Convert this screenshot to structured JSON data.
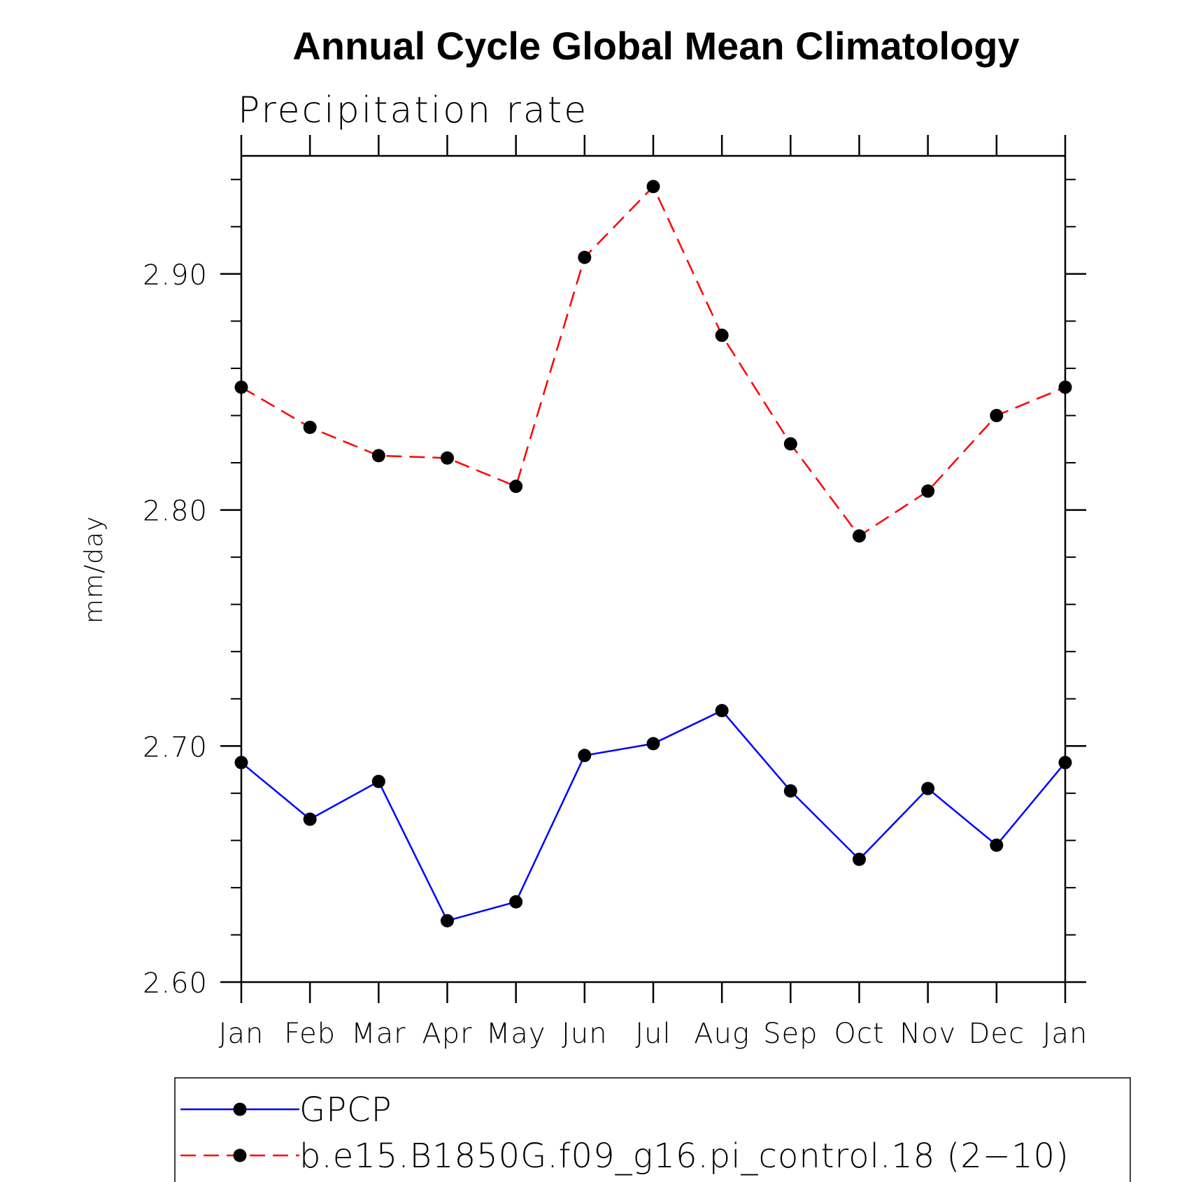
{
  "chart_data": {
    "type": "line",
    "title": "Annual Cycle Global Mean Climatology",
    "subtitle": "Precipitation rate",
    "xlabel": "",
    "ylabel": "mm/day",
    "categories": [
      "Jan",
      "Feb",
      "Mar",
      "Apr",
      "May",
      "Jun",
      "Jul",
      "Aug",
      "Sep",
      "Oct",
      "Nov",
      "Dec",
      "Jan"
    ],
    "ylim": [
      2.6,
      2.95
    ],
    "yticks": [
      2.6,
      2.7,
      2.8,
      2.9
    ],
    "ytick_labels": [
      "2.60",
      "2.70",
      "2.80",
      "2.90"
    ],
    "yminor_step": 0.02,
    "series": [
      {
        "name": "GPCP",
        "color": "#0000ff",
        "dash": "solid",
        "values": [
          2.693,
          2.669,
          2.685,
          2.626,
          2.634,
          2.696,
          2.701,
          2.715,
          2.681,
          2.652,
          2.682,
          2.658,
          2.693
        ]
      },
      {
        "name": "b.e15.B1850G.f09_g16.pi_control.18 (2−10)",
        "color": "#ff0000",
        "dash": "dashed",
        "values": [
          2.852,
          2.835,
          2.823,
          2.822,
          2.81,
          2.907,
          2.937,
          2.874,
          2.828,
          2.789,
          2.808,
          2.84,
          2.852
        ]
      }
    ],
    "legend": "bottom"
  }
}
